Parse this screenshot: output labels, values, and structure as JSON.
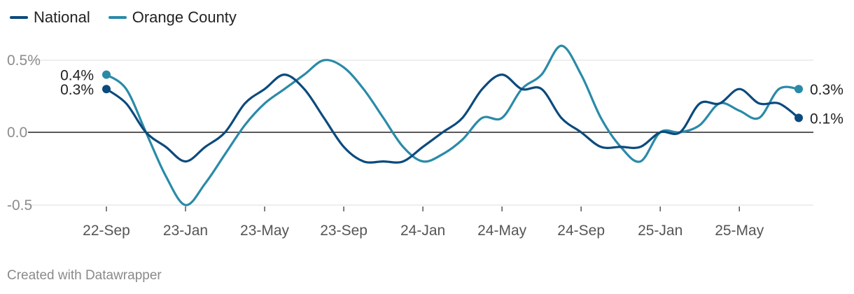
{
  "legend": [
    {
      "label": "National",
      "color": "#0b4a7d"
    },
    {
      "label": "Orange County",
      "color": "#2a8aa8"
    }
  ],
  "credit": "Created with Datawrapper",
  "chart_data": {
    "type": "line",
    "y_ticks": [
      {
        "value": 0.5,
        "label": "0.5%"
      },
      {
        "value": 0.0,
        "label": "0.0"
      },
      {
        "value": -0.5,
        "label": "-0.5"
      }
    ],
    "ylim": [
      -0.5,
      0.5
    ],
    "x_ticks": [
      {
        "i": 0,
        "label": "22-Sep"
      },
      {
        "i": 4,
        "label": "23-Jan"
      },
      {
        "i": 8,
        "label": "23-May"
      },
      {
        "i": 12,
        "label": "23-Sep"
      },
      {
        "i": 16,
        "label": "24-Jan"
      },
      {
        "i": 20,
        "label": "24-May"
      },
      {
        "i": 24,
        "label": "24-Sep"
      },
      {
        "i": 28,
        "label": "25-Jan"
      },
      {
        "i": 32,
        "label": "25-May"
      }
    ],
    "x_count": 36,
    "grid": true,
    "legend_position": "top-left",
    "series": [
      {
        "name": "National",
        "color": "#0b4a7d",
        "values": [
          0.3,
          0.2,
          0.0,
          -0.1,
          -0.2,
          -0.1,
          0.0,
          0.2,
          0.3,
          0.4,
          0.3,
          0.1,
          -0.1,
          -0.2,
          -0.2,
          -0.2,
          -0.1,
          0.0,
          0.1,
          0.3,
          0.4,
          0.3,
          0.3,
          0.1,
          0.0,
          -0.1,
          -0.1,
          -0.1,
          0.0,
          0.0,
          0.2,
          0.2,
          0.3,
          0.2,
          0.2,
          0.1
        ],
        "start_label": "0.3%",
        "end_label": "0.1%"
      },
      {
        "name": "Orange County",
        "color": "#2a8aa8",
        "values": [
          0.4,
          0.3,
          0.0,
          -0.3,
          -0.5,
          -0.35,
          -0.15,
          0.05,
          0.2,
          0.3,
          0.4,
          0.5,
          0.45,
          0.3,
          0.1,
          -0.1,
          -0.2,
          -0.15,
          -0.05,
          0.1,
          0.1,
          0.3,
          0.4,
          0.6,
          0.4,
          0.1,
          -0.1,
          -0.2,
          0.0,
          0.0,
          0.05,
          0.2,
          0.15,
          0.1,
          0.3,
          0.3
        ],
        "start_label": "0.4%",
        "end_label": "0.3%"
      }
    ]
  }
}
